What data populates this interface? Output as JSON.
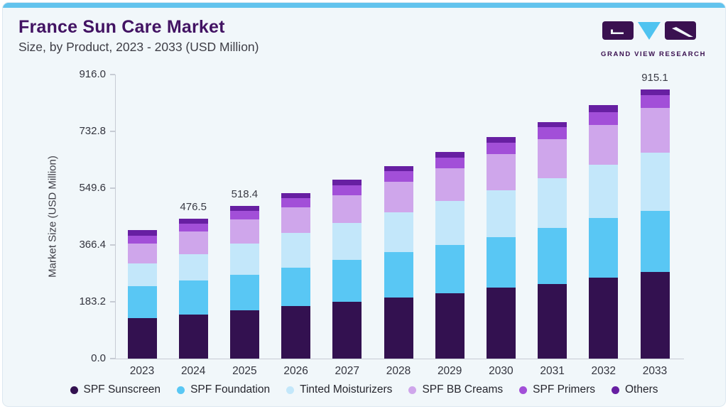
{
  "header": {
    "title": "France Sun Care Market",
    "subtitle": "Size, by Product, 2023 - 2033 (USD Million)",
    "logo_text": "GRAND VIEW RESEARCH"
  },
  "chart_data": {
    "type": "bar",
    "stacked": true,
    "title": "France Sun Care Market Size, by Product, 2023 - 2033 (USD Million)",
    "ylabel": "Market Size (USD Million)",
    "xlabel": "",
    "grid": false,
    "legend_position": "bottom",
    "ylim": [
      0,
      916
    ],
    "yticks": [
      "0.0",
      "183.2",
      "366.4",
      "549.6",
      "732.8",
      "916.0"
    ],
    "categories": [
      "2023",
      "2024",
      "2025",
      "2026",
      "2027",
      "2028",
      "2029",
      "2030",
      "2031",
      "2032",
      "2033"
    ],
    "series": [
      {
        "name": "SPF Sunscreen",
        "color": "#331150",
        "values": [
          137.9,
          150.8,
          164.4,
          177.9,
          192.3,
          208.5,
          222.2,
          242.2,
          254.3,
          274.3,
          294.5
        ]
      },
      {
        "name": "SPF Foundation",
        "color": "#59C7F4",
        "values": [
          108.5,
          114.3,
          120.5,
          131.1,
          142.2,
          152.6,
          164.6,
          171.1,
          188.7,
          203.4,
          208.7
        ]
      },
      {
        "name": "Tinted Moisturizers",
        "color": "#C3E7FA",
        "values": [
          76.2,
          91.0,
          106.0,
          118.1,
          127.0,
          136.6,
          148.7,
          158.3,
          171.1,
          180.8,
          196.9
        ]
      },
      {
        "name": "SPF BB Creams",
        "color": "#CFA6EB",
        "values": [
          68.4,
          75.5,
          82.7,
          86.8,
          94.0,
          104.4,
          112.3,
          124.4,
          132.6,
          136.4,
          151.1
        ]
      },
      {
        "name": "SPF Primers",
        "color": "#A24FD8",
        "values": [
          26.5,
          28.0,
          29.6,
          31.5,
          33.0,
          34.5,
          36.0,
          37.8,
          40.3,
          41.9,
          44.0
        ]
      },
      {
        "name": "Others",
        "color": "#671FA2",
        "values": [
          19.7,
          16.9,
          15.2,
          16.6,
          19.3,
          17.7,
          18.7,
          18.6,
          17.5,
          24.1,
          19.9
        ]
      }
    ],
    "totals": [
      437.2,
      476.5,
      518.4,
      562.0,
      607.8,
      654.3,
      702.5,
      752.4,
      804.5,
      860.9,
      915.1
    ],
    "bar_value_labels": {
      "2024": "476.5",
      "2025": "518.4",
      "2033": "915.1"
    },
    "colors": {
      "accent_strip": "#62C3ED",
      "title": "#421363",
      "axis_line": "#c7ccd4",
      "text": "#33343E",
      "background": "#F1F7FA"
    }
  }
}
